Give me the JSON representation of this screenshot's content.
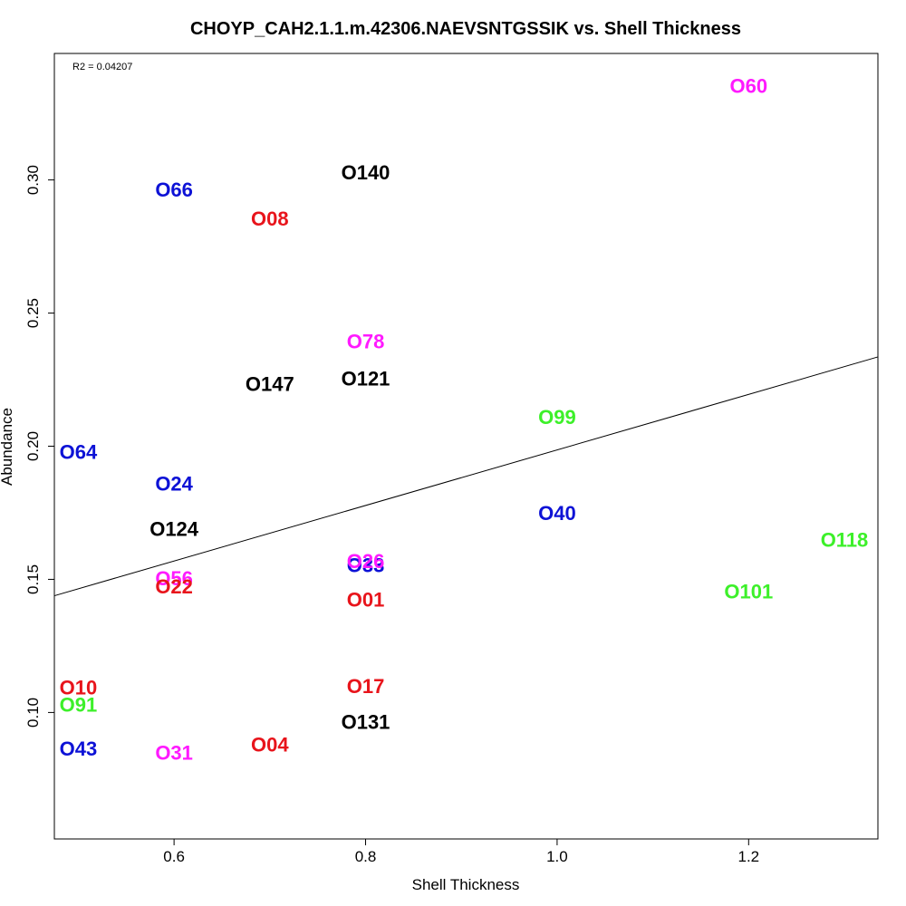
{
  "chart_data": {
    "type": "scatter",
    "title": "CHOYP_CAH2.1.1.m.42306.NAEVSNTGSSIK vs. Shell Thickness",
    "xlabel": "Shell Thickness",
    "ylabel": "Abundance",
    "annotation": "R2 = 0.04207",
    "xlim": [
      0.475,
      1.335
    ],
    "ylim": [
      0.0525,
      0.3475
    ],
    "x_ticks": [
      0.6,
      0.8,
      1.0,
      1.2
    ],
    "x_tick_labels": [
      "0.6",
      "0.8",
      "1.0",
      "1.2"
    ],
    "y_ticks": [
      0.1,
      0.15,
      0.2,
      0.25,
      0.3
    ],
    "y_tick_labels": [
      "0.10",
      "0.15",
      "0.20",
      "0.25",
      "0.30"
    ],
    "grid": false,
    "regression_line": {
      "intercept": 0.0943,
      "slope": 0.1043
    },
    "colors": {
      "red": "#e8141b",
      "blue": "#0d12d6",
      "green": "#3df02a",
      "magenta": "#ff1aff",
      "black": "#000000"
    },
    "points": [
      {
        "label": "O60",
        "x": 1.2,
        "y": 0.3355,
        "color": "magenta"
      },
      {
        "label": "O140",
        "x": 0.8,
        "y": 0.303,
        "color": "black"
      },
      {
        "label": "O66",
        "x": 0.6,
        "y": 0.2965,
        "color": "blue"
      },
      {
        "label": "O08",
        "x": 0.7,
        "y": 0.2855,
        "color": "red"
      },
      {
        "label": "O78",
        "x": 0.8,
        "y": 0.2395,
        "color": "magenta"
      },
      {
        "label": "O121",
        "x": 0.8,
        "y": 0.2255,
        "color": "black"
      },
      {
        "label": "O147",
        "x": 0.7,
        "y": 0.2235,
        "color": "black"
      },
      {
        "label": "O99",
        "x": 1.0,
        "y": 0.211,
        "color": "green"
      },
      {
        "label": "O64",
        "x": 0.5,
        "y": 0.198,
        "color": "blue"
      },
      {
        "label": "O24",
        "x": 0.6,
        "y": 0.186,
        "color": "blue"
      },
      {
        "label": "O40",
        "x": 1.0,
        "y": 0.175,
        "color": "blue"
      },
      {
        "label": "O124",
        "x": 0.6,
        "y": 0.169,
        "color": "black"
      },
      {
        "label": "O118",
        "x": 1.3,
        "y": 0.165,
        "color": "green"
      },
      {
        "label": "O33",
        "x": 0.8,
        "y": 0.1555,
        "color": "blue"
      },
      {
        "label": "O26",
        "x": 0.8,
        "y": 0.157,
        "color": "magenta"
      },
      {
        "label": "O56",
        "x": 0.6,
        "y": 0.1505,
        "color": "magenta"
      },
      {
        "label": "O22",
        "x": 0.6,
        "y": 0.1475,
        "color": "red"
      },
      {
        "label": "O101",
        "x": 1.2,
        "y": 0.1455,
        "color": "green"
      },
      {
        "label": "O01",
        "x": 0.8,
        "y": 0.1425,
        "color": "red"
      },
      {
        "label": "O10",
        "x": 0.5,
        "y": 0.1095,
        "color": "red"
      },
      {
        "label": "O17",
        "x": 0.8,
        "y": 0.11,
        "color": "red"
      },
      {
        "label": "O91",
        "x": 0.5,
        "y": 0.103,
        "color": "green"
      },
      {
        "label": "O131",
        "x": 0.8,
        "y": 0.0965,
        "color": "black"
      },
      {
        "label": "O04",
        "x": 0.7,
        "y": 0.088,
        "color": "red"
      },
      {
        "label": "O43",
        "x": 0.5,
        "y": 0.0865,
        "color": "blue"
      },
      {
        "label": "O31",
        "x": 0.6,
        "y": 0.085,
        "color": "magenta"
      }
    ]
  }
}
